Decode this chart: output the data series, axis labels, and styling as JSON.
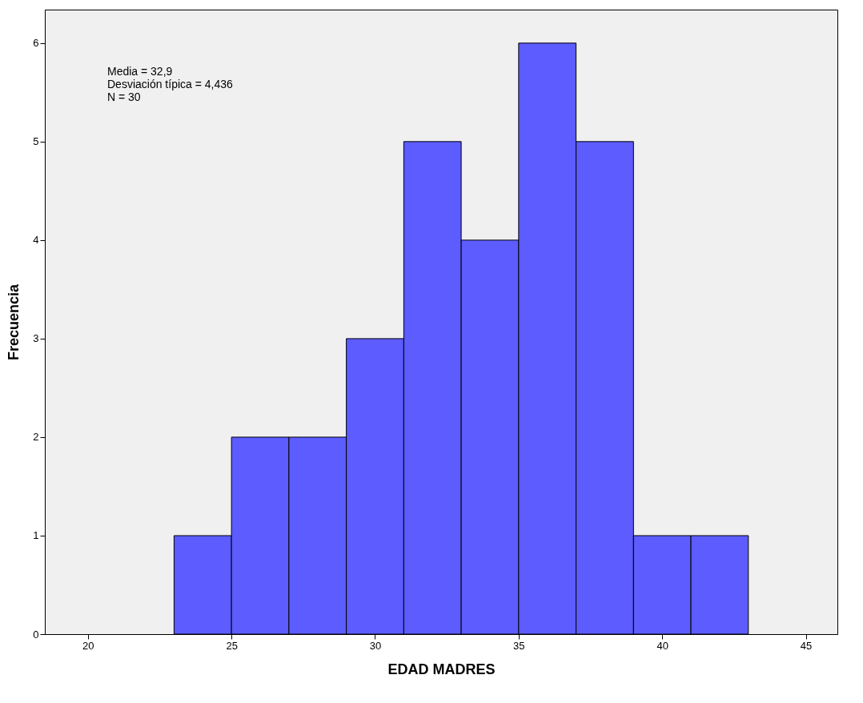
{
  "chart_data": {
    "type": "histogram",
    "xlabel": "EDAD MADRES",
    "ylabel": "Frecuencia",
    "bins": [
      23,
      25,
      27,
      29,
      31,
      33,
      35,
      37,
      39,
      41,
      43
    ],
    "values": [
      1,
      2,
      2,
      3,
      5,
      4,
      6,
      5,
      1,
      1
    ],
    "color": "#5c5cff",
    "xlim": [
      18.5,
      46.1
    ],
    "xticks": [
      20,
      25,
      30,
      35,
      40,
      45
    ],
    "ylim": [
      0,
      6.34
    ],
    "yticks": [
      0,
      1,
      2,
      3,
      4,
      5,
      6
    ],
    "grid": false,
    "annotations": [
      "Media = 32,9",
      "Desviación típica = 4,436",
      "N = 30"
    ]
  }
}
